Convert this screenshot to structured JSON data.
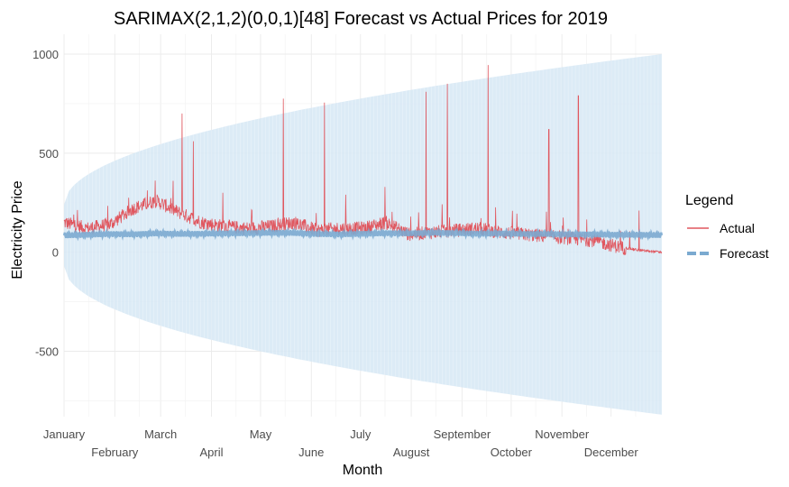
{
  "chart_data": {
    "type": "line",
    "title": "SARIMAX(2,1,2)(0,0,1)[48] Forecast vs Actual Prices for 2019",
    "xlabel": "Month",
    "ylabel": "Electricity Price",
    "x_tick_labels": [
      "January",
      "February",
      "March",
      "April",
      "May",
      "June",
      "July",
      "August",
      "September",
      "October",
      "November",
      "December"
    ],
    "y_ticks": [
      1000,
      500,
      0,
      -500
    ],
    "y_tick_labels": [
      "1000",
      "500",
      "0",
      "-500"
    ],
    "ylim": [
      -830,
      1100
    ],
    "x_range_days": [
      0,
      365
    ],
    "grid": true,
    "legend": {
      "title": "Legend",
      "position": "right",
      "entries": [
        "Actual",
        "Forecast"
      ]
    },
    "colors": {
      "actual": "#E0575F",
      "forecast": "#7BAAD0",
      "interval": "#D6E8F5"
    },
    "series": [
      {
        "name": "Forecast",
        "values_approx": [
          85,
          88,
          92,
          90,
          95,
          92,
          93,
          95,
          96,
          98,
          97,
          92,
          90,
          93,
          96,
          95,
          98,
          97,
          93,
          95,
          92,
          92,
          90,
          90,
          88,
          88,
          86
        ]
      },
      {
        "name": "Actual",
        "values_approx": [
          150,
          120,
          140,
          220,
          260,
          200,
          150,
          130,
          120,
          130,
          150,
          110,
          120,
          120,
          150,
          90,
          100,
          110,
          120,
          100,
          90,
          80,
          70,
          60,
          30,
          10,
          0
        ]
      }
    ],
    "actual_spikes": [
      {
        "month": "January",
        "value": 190
      },
      {
        "month": "March",
        "value": 700
      },
      {
        "month": "March",
        "value": 560
      },
      {
        "month": "April",
        "value": 300
      },
      {
        "month": "May",
        "value": 775
      },
      {
        "month": "June",
        "value": 290
      },
      {
        "month": "June",
        "value": 755
      },
      {
        "month": "July",
        "value": 330
      },
      {
        "month": "August",
        "value": 850
      },
      {
        "month": "August",
        "value": 810
      },
      {
        "month": "September",
        "value": 945
      },
      {
        "month": "October",
        "value": 620
      },
      {
        "month": "November",
        "value": 790
      },
      {
        "month": "December",
        "value": 210
      }
    ],
    "forecast_interval": {
      "upper_start": 240,
      "upper_end": 1000,
      "lower_start": -70,
      "lower_end": -820
    }
  }
}
